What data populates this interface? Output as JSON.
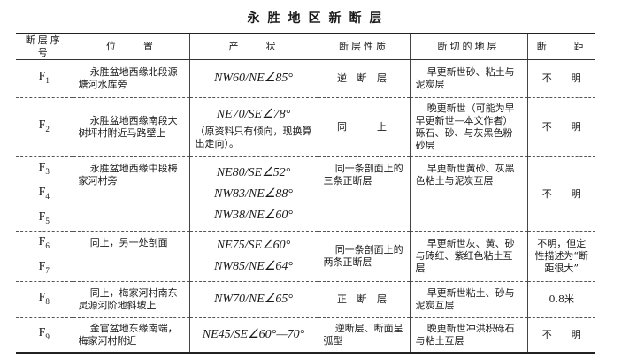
{
  "title": "永胜地区新断层",
  "headers": [
    "断层序号",
    "位　　置",
    "产　　状",
    "断层性质",
    "断切的地层",
    "断　　距"
  ],
  "rows": [
    {
      "ids": [
        "F1"
      ],
      "location": "永胜盆地西缘北段源塘河水库旁",
      "attitudes": [
        "NW60/NE∠85°"
      ],
      "nature": "逆 断 层",
      "strata": "早更新世砂、粘土与泥炭层",
      "throw": "不　　明"
    },
    {
      "ids": [
        "F2"
      ],
      "location": "永胜盆地西缘南段大树坪村附近马路壁上",
      "attitudes": [
        "NE70/SE∠78°"
      ],
      "attitude_note": "（原资料只有倾向，现换算出走向）。",
      "nature": "同　　上",
      "strata": "晚更新世（可能为早早更新世—本文作者）砾石、砂、与灰黑色粉砂层",
      "throw": "不　　明"
    },
    {
      "ids": [
        "F3",
        "F4",
        "F5"
      ],
      "location": "永胜盆地西缘中段梅家河村旁",
      "attitudes": [
        "NE80/SE∠52°",
        "NW83/NE∠88°",
        "NW38/NE∠60°"
      ],
      "nature": "同一条剖面上的三条正断层",
      "strata": "早更新世黄砂、灰黑色粘土与泥炭互层",
      "throw": "不　　明"
    },
    {
      "ids": [
        "F6",
        "F7"
      ],
      "location": "同上，另一处剖面",
      "attitudes": [
        "NE75/SE∠60°",
        "NW85/NE∠64°"
      ],
      "nature": "同一条剖面上的两条正断层",
      "strata": "早更新世灰、黄、砂与砖红、紫红色粘土互层",
      "throw": "不明，但定性描述为“断距很大”"
    },
    {
      "ids": [
        "F8"
      ],
      "location": "同上，梅家河村南东灵源河阶地斜坡上",
      "attitudes": [
        "NW70/NE∠65°"
      ],
      "nature": "正 断 层",
      "strata": "早更新世粘土、砂与泥炭互层",
      "throw": "0.8米"
    },
    {
      "ids": [
        "F9"
      ],
      "location": "金官盆地东缘南端，梅家河村附近",
      "attitudes": [
        "NE45/SE∠60°—70°"
      ],
      "nature": "逆断层、断面呈弧型",
      "strata": "晚更新世冲洪积砾石与粘土互层",
      "throw": "不　　明"
    }
  ]
}
